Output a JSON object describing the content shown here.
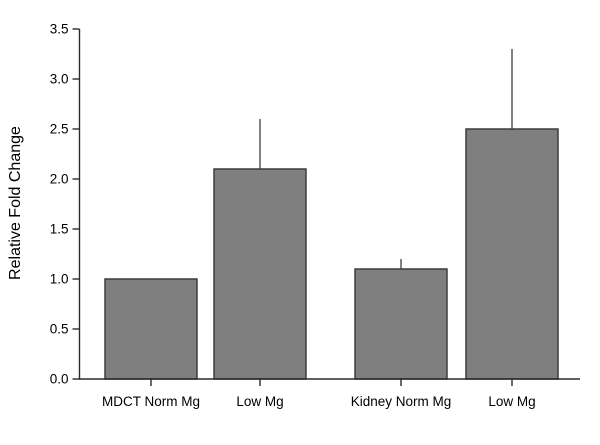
{
  "chart_data": {
    "type": "bar",
    "title": "",
    "ylabel": "Relative Fold Change",
    "xlabel": "",
    "categories": [
      "MDCT Norm Mg",
      "Low Mg",
      "Kidney Norm Mg",
      "Low Mg"
    ],
    "values": [
      1.0,
      2.1,
      1.1,
      2.5
    ],
    "errors_upper": [
      0,
      0.5,
      0.1,
      0.8
    ],
    "error_tops": [
      null,
      2.6,
      1.2,
      3.3
    ],
    "ylim": [
      0.0,
      3.5
    ],
    "ytick_step": 0.5,
    "ytick_labels": [
      "0.0",
      "0.5",
      "1.0",
      "1.5",
      "2.0",
      "2.5",
      "3.0",
      "3.5"
    ],
    "grid": false,
    "legend": false,
    "bar_fill_color": "#7f7f7f",
    "bar_border_color": "#3d3d3d",
    "axis_color": "#2b2b2b",
    "error_bar_color": "#3d3d3d",
    "error_bar_caps": false,
    "background_color": "#ffffff"
  }
}
